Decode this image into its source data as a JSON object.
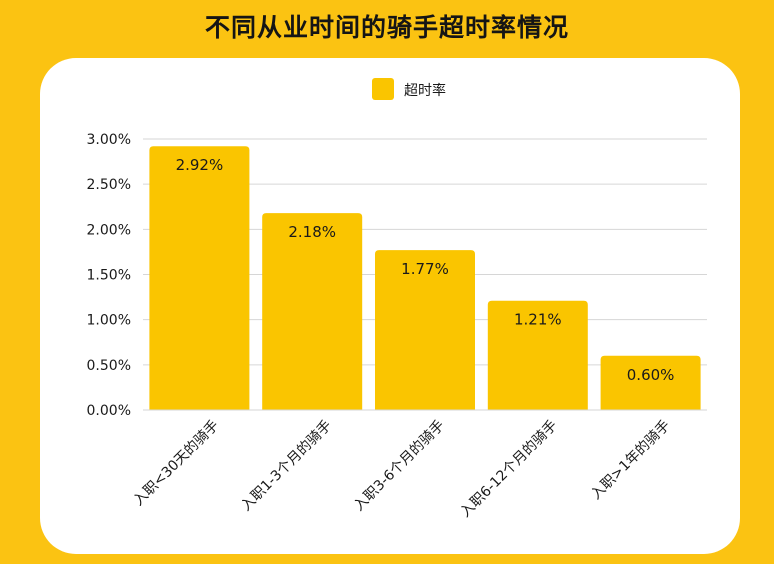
{
  "page": {
    "title": "不同从业时间的骑手超时率情况"
  },
  "colors": {
    "background": "#FBC312",
    "card": "#FFFFFF",
    "bar": "#FAC500",
    "gridline": "#D6D6D6",
    "text": "#1A1A1A"
  },
  "chart_data": {
    "type": "bar",
    "title": "不同从业时间的骑手超时率情况",
    "categories": [
      "入职<30天的骑手",
      "入职1-3个月的骑手",
      "入职3-6个月的骑手",
      "入职6-12个月的骑手",
      "入职>1年的骑手"
    ],
    "series": [
      {
        "name": "超时率",
        "values": [
          2.92,
          2.18,
          1.77,
          1.21,
          0.6
        ]
      }
    ],
    "data_labels": [
      "2.92%",
      "2.18%",
      "1.77%",
      "1.21%",
      "0.60%"
    ],
    "y_ticks": [
      "0.00%",
      "0.50%",
      "1.00%",
      "1.50%",
      "2.00%",
      "2.50%",
      "3.00%"
    ],
    "ylim": [
      0,
      3
    ],
    "grid": true,
    "legend_position": "top"
  }
}
